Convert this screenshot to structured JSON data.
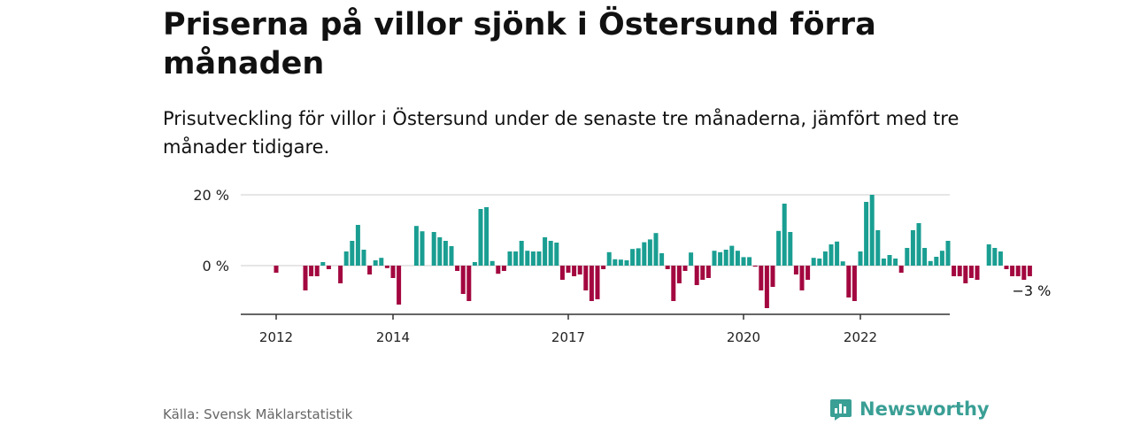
{
  "title": "Priserna på villor sjönk i Östersund förra månaden",
  "subtitle": "Prisutveckling för villor i Östersund under de senaste tre månaderna, jämfört med tre månader tidigare.",
  "source": "Källa: Svensk Mäklarstatistik",
  "brand": "Newsworthy",
  "colors": {
    "positive": "#1a9e92",
    "negative": "#a3073f",
    "brand": "#3a9f95",
    "axis": "#333333",
    "grid": "#cccccc"
  },
  "chart_data": {
    "type": "bar",
    "last_label": "−3 %",
    "y_ticks": [
      0,
      20
    ],
    "y_tick_labels": [
      "0 %",
      "20 %"
    ],
    "ylim": [
      -13,
      20
    ],
    "x_ticks": [
      {
        "label": "2012",
        "index": 0
      },
      {
        "label": "2014",
        "index": 20
      },
      {
        "label": "2017",
        "index": 50
      },
      {
        "label": "2020",
        "index": 80
      },
      {
        "label": "2022",
        "index": 100
      }
    ],
    "grid": true,
    "values": [
      -2,
      0,
      0,
      0,
      0,
      -7,
      -3,
      -3,
      1,
      -1,
      0,
      -5,
      4,
      7,
      11.5,
      4.5,
      -2.5,
      1.5,
      2.2,
      -0.7,
      -3.5,
      -11,
      0,
      0,
      11.2,
      9.7,
      0,
      9.5,
      8,
      7,
      5.5,
      -1.5,
      -8,
      -10,
      1,
      16,
      16.5,
      1.3,
      -2.3,
      -1.5,
      4,
      4,
      7,
      4.2,
      4,
      4,
      8,
      7,
      6.5,
      -4,
      -2,
      -3,
      -2.5,
      -7,
      -10,
      -9.5,
      -1,
      3.8,
      1.8,
      1.7,
      1.5,
      4.7,
      4.9,
      6.6,
      7.4,
      9.2,
      3.5,
      -1,
      -10,
      -5,
      -1.5,
      3.7,
      -5.5,
      -4,
      -3.5,
      4.2,
      3.8,
      4.5,
      5.6,
      4.2,
      2.4,
      2.4,
      -0.3,
      -7,
      -12,
      -6,
      9.8,
      17.5,
      9.5,
      -2.5,
      -7,
      -4,
      2.2,
      2,
      4,
      6,
      6.8,
      1.2,
      -9,
      -10,
      4,
      18,
      20,
      10,
      2,
      3,
      2,
      -2,
      5,
      10,
      12,
      5,
      1.3,
      2.5,
      4.2,
      7,
      -3,
      -3,
      -5,
      -3.5,
      -4,
      0,
      6,
      5,
      4,
      -1,
      -3,
      -3,
      -4,
      -3
    ]
  }
}
